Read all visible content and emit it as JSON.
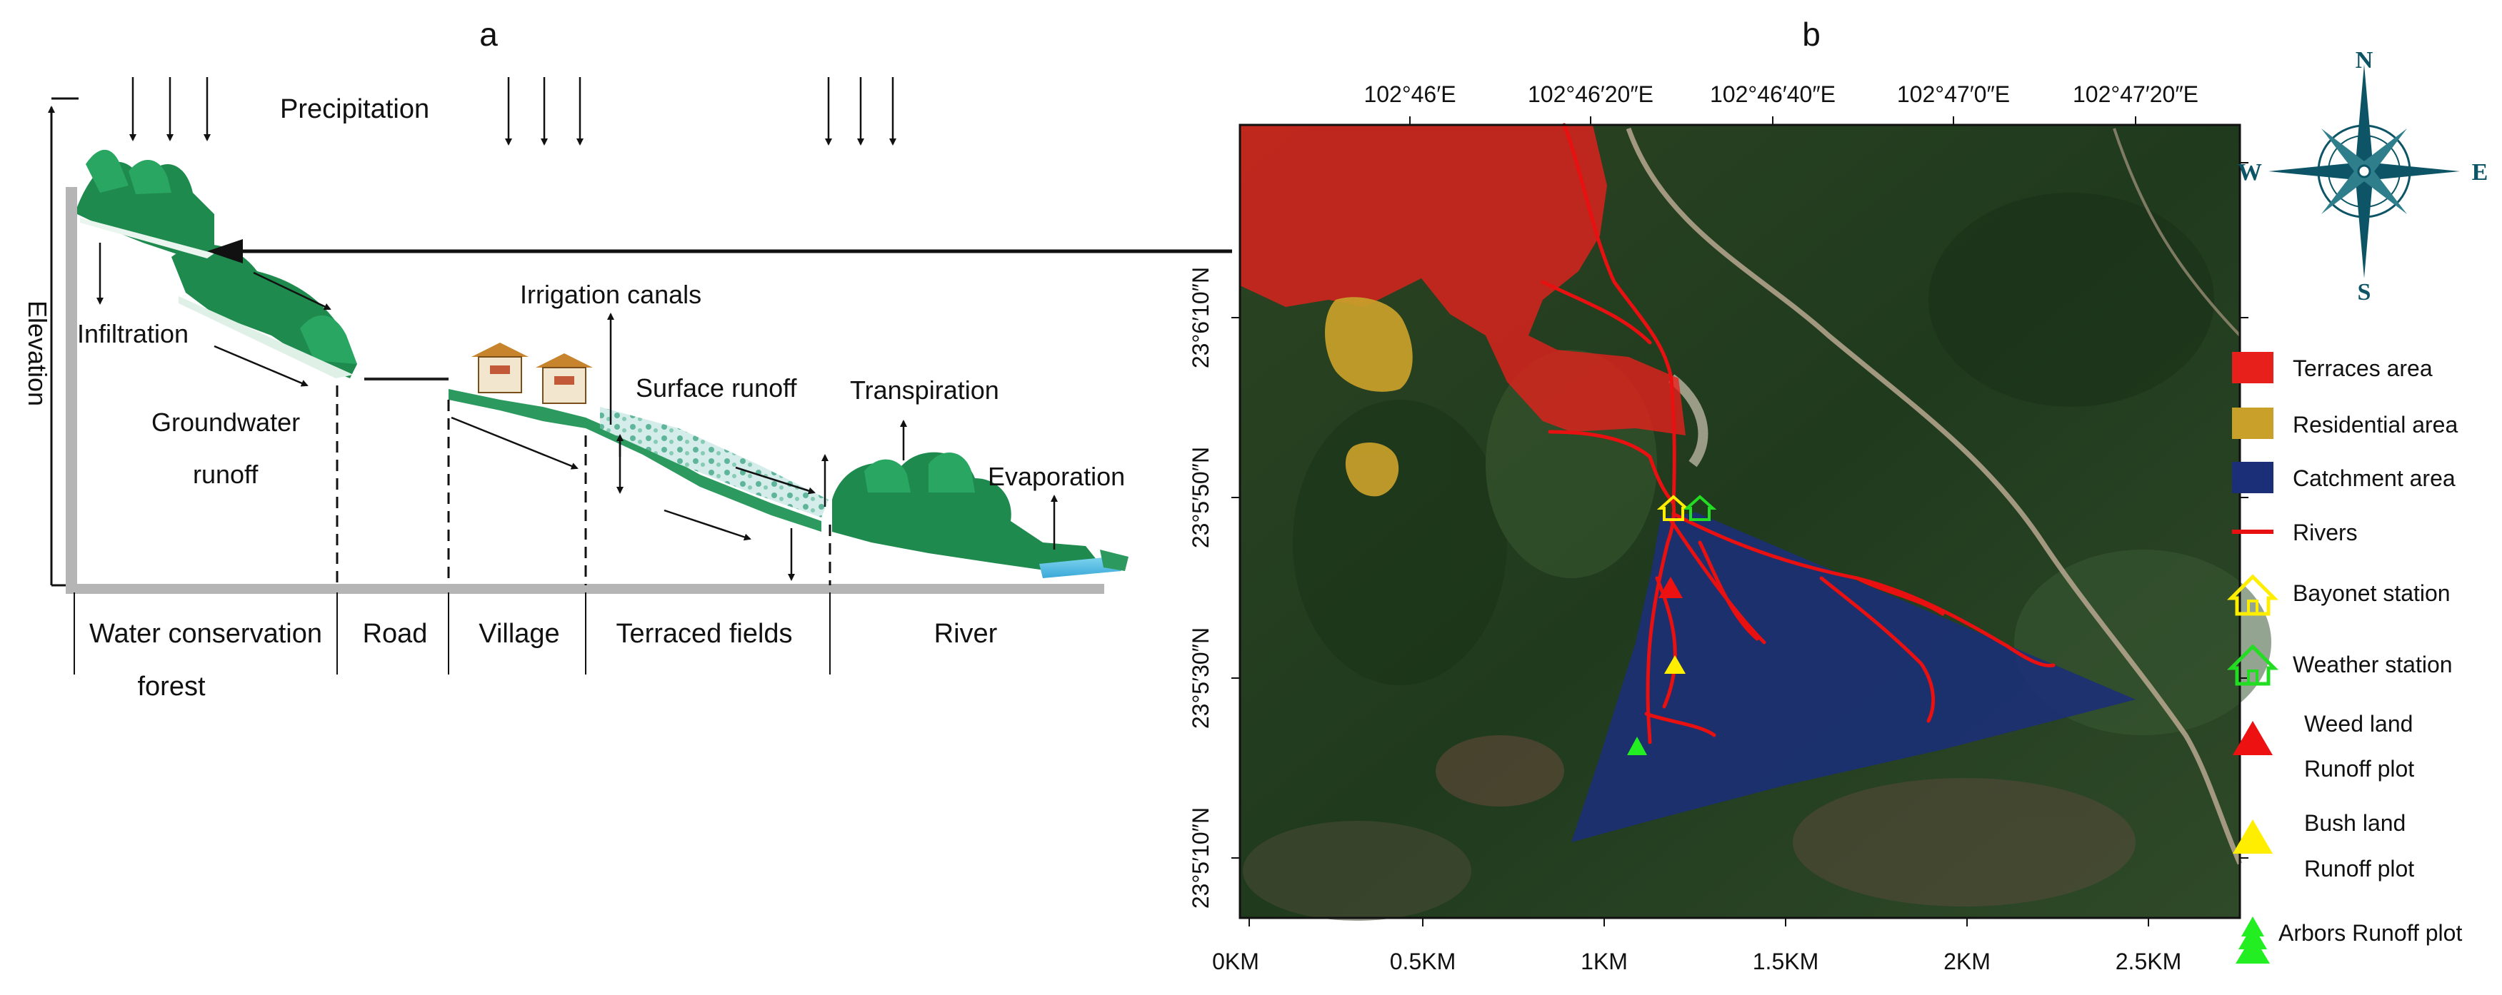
{
  "panel_a": {
    "label": "a",
    "elevation_label": "Elevation",
    "precipitation_label": "Precipitation",
    "process_labels": {
      "infiltration": "Infiltration",
      "groundwater_line1": "Groundwater",
      "groundwater_line2": "runoff",
      "irrigation": "Irrigation canals",
      "surface_runoff": "Surface runoff",
      "transpiration": "Transpiration",
      "evaporation": "Evaporation"
    },
    "zones": {
      "forest_line1": "Water conservation",
      "forest_line2": "forest",
      "road": "Road",
      "village": "Village",
      "terraced": "Terraced fields",
      "river": "River"
    }
  },
  "panel_b": {
    "label": "b",
    "top_ticks": [
      "102°46′E",
      "102°46′20″E",
      "102°46′40″E",
      "102°47′0″E",
      "102°47′20″E"
    ],
    "left_ticks": [
      "23°6′10″N",
      "23°5′50″N",
      "23°5′30″N",
      "23°5′10″N"
    ],
    "scale_ticks": [
      "0KM",
      "0.5KM",
      "1KM",
      "1.5KM",
      "2KM",
      "2.5KM"
    ],
    "compass": {
      "n": "N",
      "s": "S",
      "e": "E",
      "w": "W"
    },
    "legend": {
      "terraces": "Terraces area",
      "residential": "Residential area",
      "catchment": "Catchment area",
      "rivers": "Rivers",
      "bayonet": "Bayonet station",
      "weather": "Weather station",
      "weed_line1": "Weed land",
      "weed_line2": "Runoff plot",
      "bush_line1": "Bush land",
      "bush_line2": "Runoff plot",
      "arbors": "Arbors Runoff plot"
    },
    "colors": {
      "terraces": "#e8201c",
      "residential": "#c9a12a",
      "catchment": "#1a2f78",
      "rivers": "#e81010",
      "bayonet": "#ffee00",
      "weather": "#22dd22",
      "weed": "#ee1111",
      "bush": "#ffee00",
      "arbors": "#22ee22"
    }
  }
}
